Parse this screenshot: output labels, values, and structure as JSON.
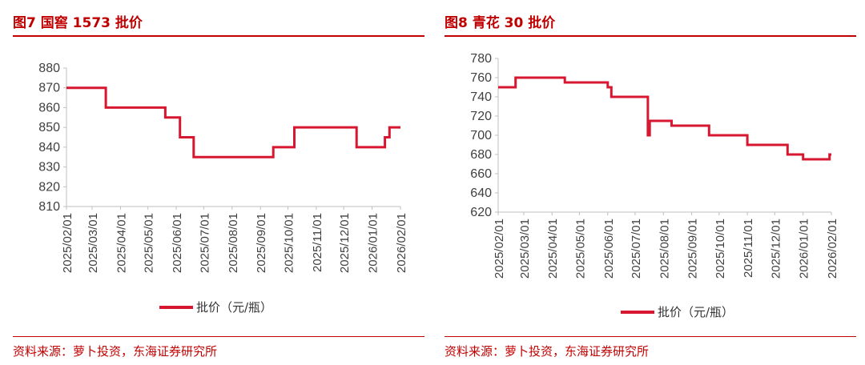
{
  "source_text": "资料来源：萝卜投资，东海证券研究所",
  "chart_data": [
    {
      "type": "line",
      "title": "图7  国窖 1573 批价",
      "ylim": [
        810,
        880
      ],
      "yticks": [
        810,
        820,
        830,
        840,
        850,
        860,
        870,
        880
      ],
      "x_tick_labels": [
        "2025/02/01",
        "2025/03/01",
        "2025/04/01",
        "2025/05/01",
        "2025/06/01",
        "2025/07/01",
        "2025/08/01",
        "2025/09/01",
        "2025/10/01",
        "2025/11/01",
        "2025/12/01",
        "2026/01/01",
        "2026/02/01"
      ],
      "xlim": [
        "2025-02-01",
        "2026-02-01"
      ],
      "grid": false,
      "legend_position": "bottom",
      "line_color": "#d7172f",
      "series": [
        {
          "name": "批价（元/瓶）",
          "x": [
            "2025-02-01",
            "2025-03-16",
            "2025-03-16",
            "2025-05-20",
            "2025-05-20",
            "2025-06-05",
            "2025-06-05",
            "2025-06-20",
            "2025-06-20",
            "2025-09-15",
            "2025-09-15",
            "2025-10-08",
            "2025-10-08",
            "2025-12-15",
            "2025-12-15",
            "2026-01-15",
            "2026-01-15",
            "2026-01-20",
            "2026-01-20",
            "2026-02-01"
          ],
          "y": [
            870,
            870,
            860,
            860,
            855,
            855,
            845,
            845,
            835,
            835,
            840,
            840,
            850,
            850,
            840,
            840,
            845,
            845,
            850,
            850
          ]
        }
      ]
    },
    {
      "type": "line",
      "title": "图8  青花 30 批价",
      "ylim": [
        620,
        780
      ],
      "yticks": [
        620,
        640,
        660,
        680,
        700,
        720,
        740,
        760,
        780
      ],
      "x_tick_labels": [
        "2025/02/01",
        "2025/03/01",
        "2025/04/01",
        "2025/05/01",
        "2025/06/01",
        "2025/07/01",
        "2025/08/01",
        "2025/09/01",
        "2025/10/01",
        "2025/11/01",
        "2025/12/01",
        "2026/01/01",
        "2026/02/01"
      ],
      "xlim": [
        "2025-02-01",
        "2026-02-01"
      ],
      "grid": false,
      "legend_position": "bottom",
      "line_color": "#d7172f",
      "series": [
        {
          "name": "批价（元/瓶）",
          "x": [
            "2025-02-01",
            "2025-02-20",
            "2025-02-20",
            "2025-04-15",
            "2025-04-15",
            "2025-06-01",
            "2025-06-01",
            "2025-06-05",
            "2025-06-05",
            "2025-07-15",
            "2025-07-15",
            "2025-07-17",
            "2025-07-17",
            "2025-08-10",
            "2025-08-10",
            "2025-09-20",
            "2025-09-20",
            "2025-11-01",
            "2025-11-01",
            "2025-12-15",
            "2025-12-15",
            "2026-01-01",
            "2026-01-01",
            "2026-01-30",
            "2026-01-30",
            "2026-02-01"
          ],
          "y": [
            750,
            750,
            760,
            760,
            755,
            755,
            750,
            750,
            740,
            740,
            700,
            700,
            715,
            715,
            710,
            710,
            700,
            700,
            690,
            690,
            680,
            680,
            675,
            675,
            680,
            680
          ]
        }
      ]
    }
  ]
}
